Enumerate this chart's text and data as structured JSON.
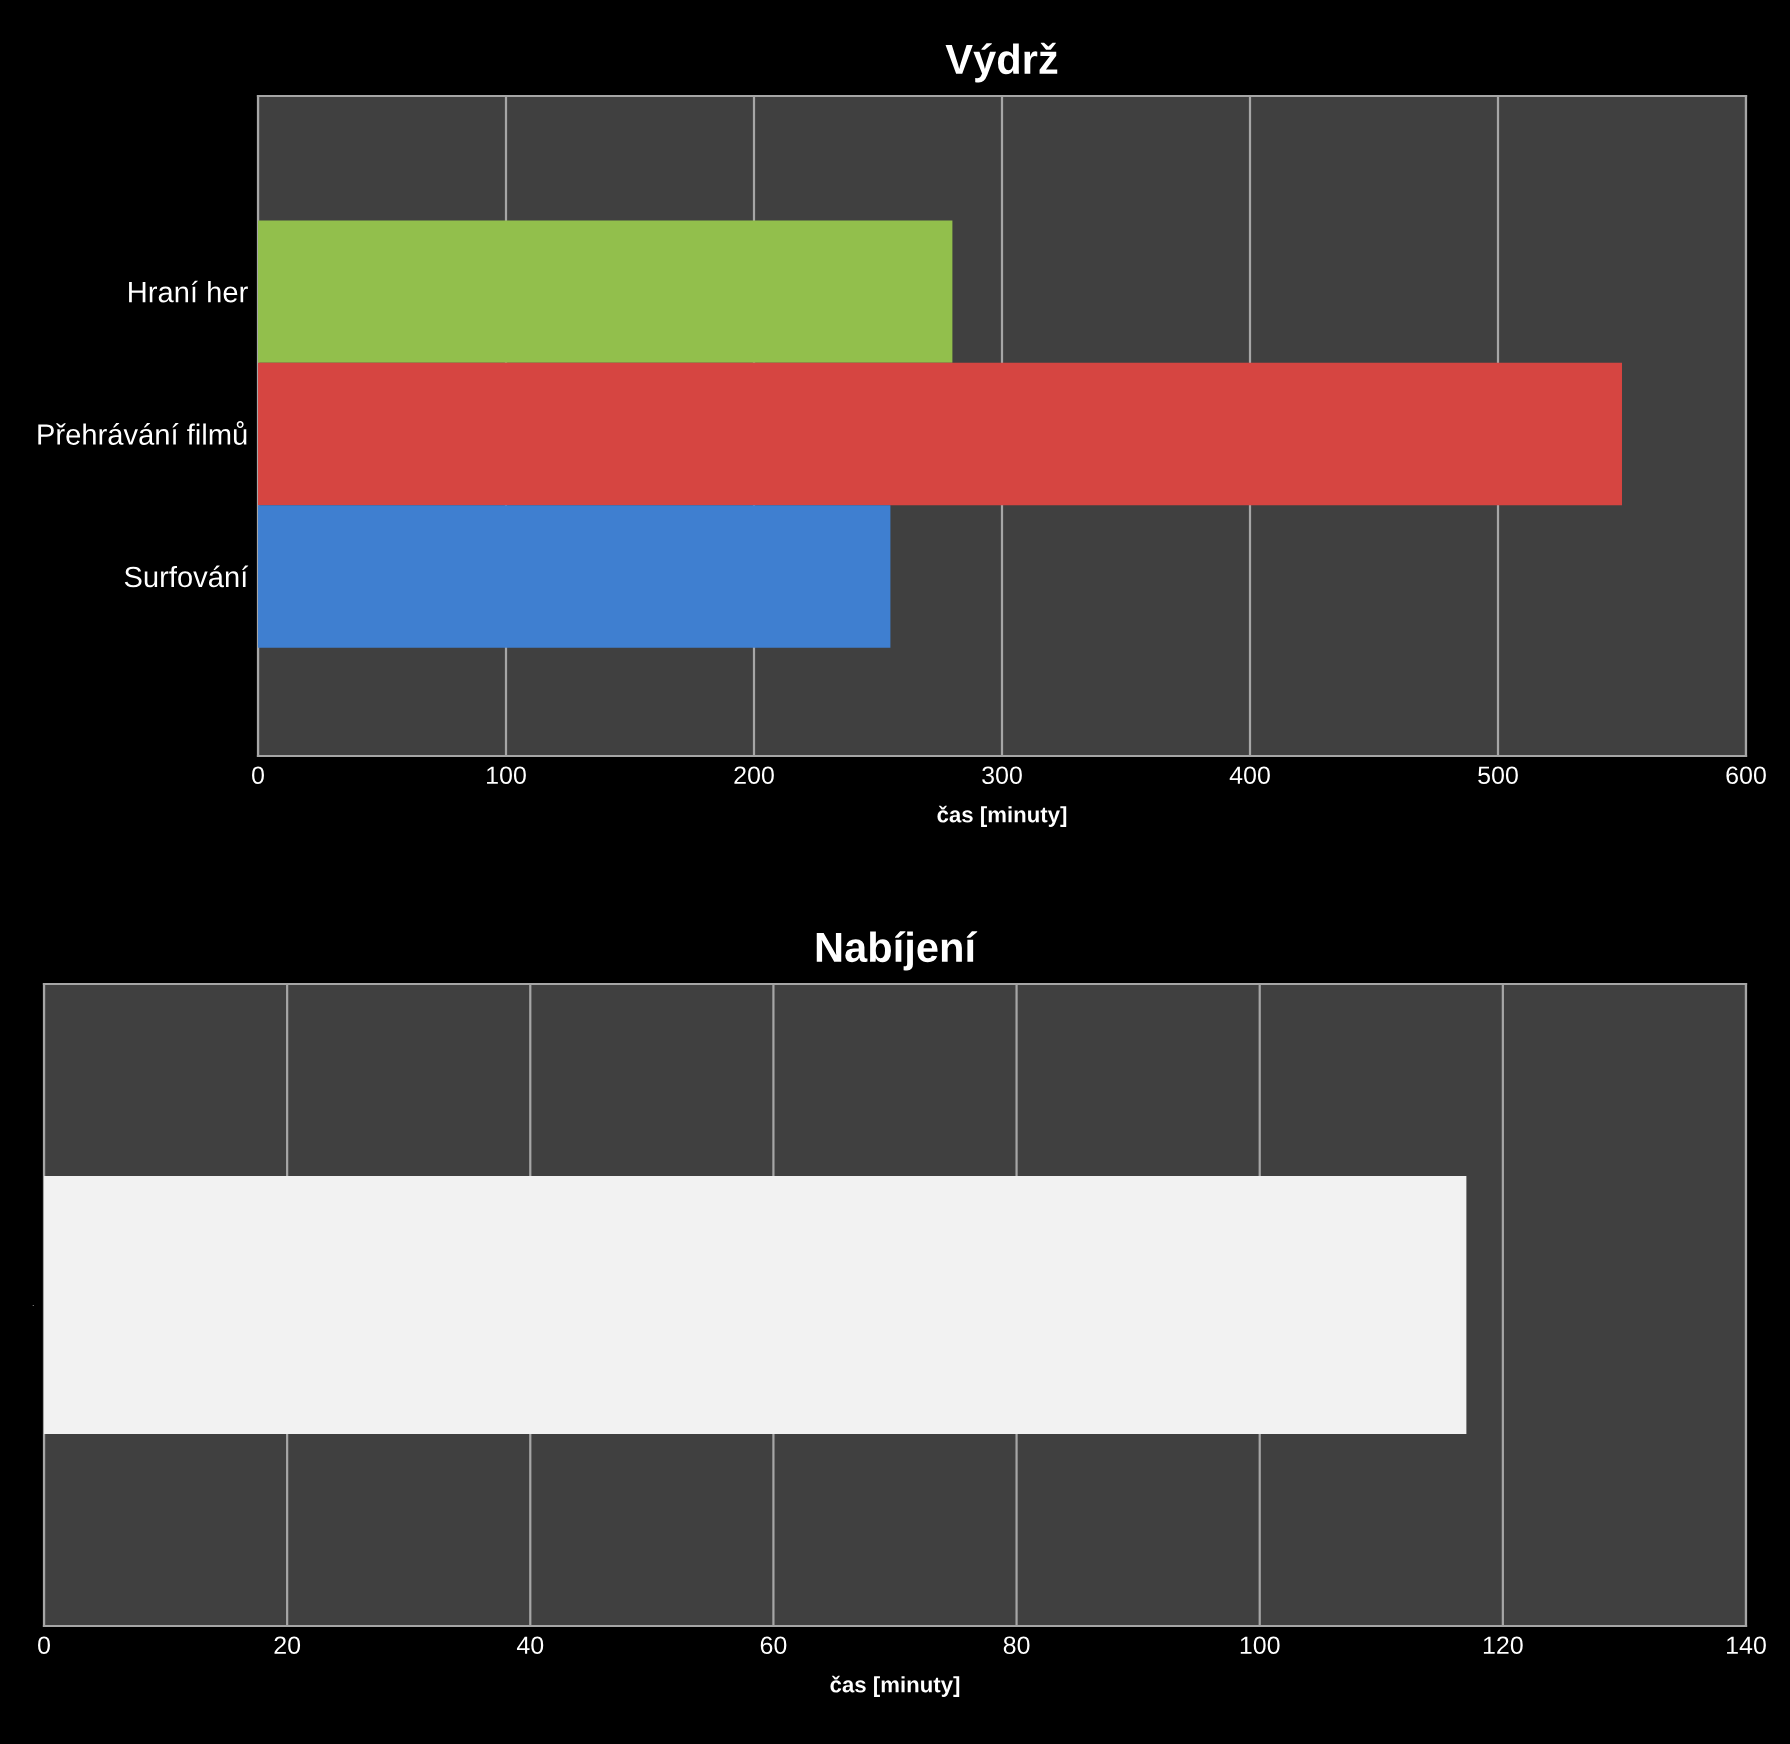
{
  "chart_data": [
    {
      "type": "bar",
      "orientation": "horizontal",
      "title": "Výdrž",
      "xlabel": "čas [minuty]",
      "categories": [
        "Hraní her",
        "Přehrávání filmů",
        "Surfování"
      ],
      "values": [
        280,
        550,
        255
      ],
      "colors": [
        "#92bf4c",
        "#d64541",
        "#3f7fd0"
      ],
      "xlim": [
        0,
        600
      ],
      "xticks": [
        0,
        100,
        200,
        300,
        400,
        500,
        600
      ],
      "grid": "x",
      "legend": false
    },
    {
      "type": "bar",
      "orientation": "horizontal",
      "title": "Nabíjení",
      "xlabel": "čas [minuty]",
      "categories": [
        "-"
      ],
      "values": [
        117
      ],
      "colors": [
        "#f2f2f2"
      ],
      "xlim": [
        0,
        140
      ],
      "xticks": [
        0,
        20,
        40,
        60,
        80,
        100,
        120,
        140
      ],
      "grid": "x",
      "legend": false
    }
  ]
}
